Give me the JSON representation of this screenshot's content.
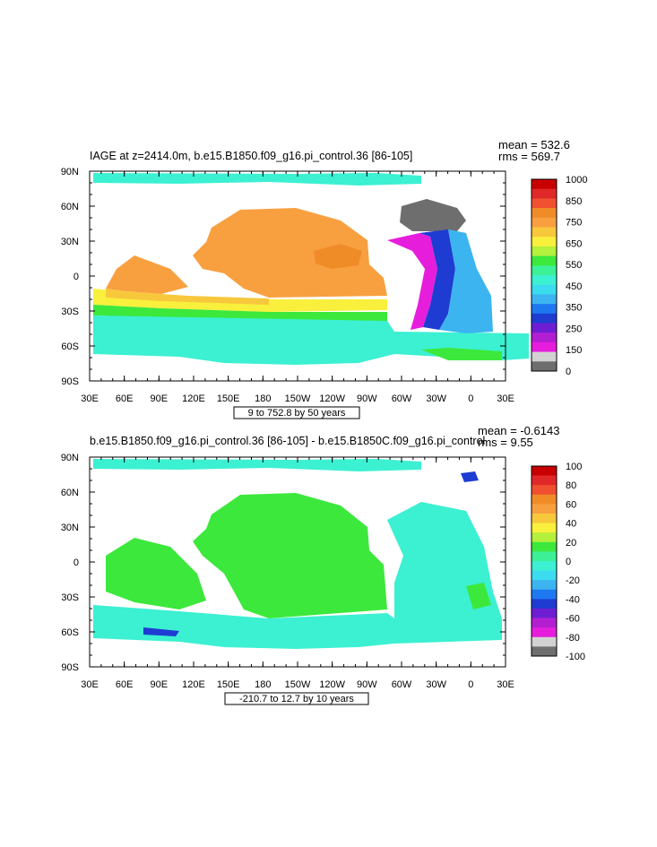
{
  "chart_data": [
    {
      "type": "heatmap",
      "title": "IAGE at z=2414.0m, b.e15.B1850.f09_g16.pi_control.36 [86-105]",
      "stats": {
        "mean": "mean = 532.6",
        "rms": "rms = 569.7"
      },
      "xticks": [
        "30E",
        "60E",
        "90E",
        "120E",
        "150E",
        "180",
        "150W",
        "120W",
        "90W",
        "60W",
        "30W",
        "0",
        "30E"
      ],
      "yticks": [
        "90N",
        "60N",
        "30N",
        "0",
        "30S",
        "60S",
        "90S"
      ],
      "range_label": "9 to 752.8 by 50 years",
      "colorbar": {
        "labels": [
          "1000",
          "850",
          "750",
          "650",
          "550",
          "450",
          "350",
          "250",
          "150",
          "0"
        ],
        "colors": [
          "#c80000",
          "#e02828",
          "#f05030",
          "#f08c28",
          "#f8a040",
          "#f8c83c",
          "#f8f03c",
          "#b4f03c",
          "#3ce83c",
          "#3cf096",
          "#3cf0d2",
          "#3cdcf0",
          "#3cb4f0",
          "#1e78f0",
          "#1e3cd2",
          "#6e1ed2",
          "#b41ed2",
          "#e61edc",
          "#d2d2d2",
          "#6e6e6e"
        ]
      }
    },
    {
      "type": "heatmap",
      "title": "b.e15.B1850.f09_g16.pi_control.36 [86-105] - b.e15.B1850C.f09_g16.pi_control",
      "stats": {
        "mean": "mean = -0.6143",
        "rms": "rms = 9.55"
      },
      "xticks": [
        "30E",
        "60E",
        "90E",
        "120E",
        "150E",
        "180",
        "150W",
        "120W",
        "90W",
        "60W",
        "30W",
        "0",
        "30E"
      ],
      "yticks": [
        "90N",
        "60N",
        "30N",
        "0",
        "30S",
        "60S",
        "90S"
      ],
      "range_label": "-210.7 to 12.7 by 10 years",
      "colorbar": {
        "labels": [
          "100",
          "80",
          "60",
          "40",
          "20",
          "0",
          "-20",
          "-40",
          "-60",
          "-80",
          "-100"
        ],
        "colors": [
          "#c80000",
          "#e02828",
          "#f05030",
          "#f08c28",
          "#f8a040",
          "#f8c83c",
          "#f8f03c",
          "#b4f03c",
          "#3ce83c",
          "#3cf096",
          "#3cf0d2",
          "#3cdcf0",
          "#3cb4f0",
          "#1e78f0",
          "#1e3cd2",
          "#6e1ed2",
          "#b41ed2",
          "#e61edc",
          "#d2d2d2",
          "#6e6e6e"
        ]
      }
    }
  ]
}
